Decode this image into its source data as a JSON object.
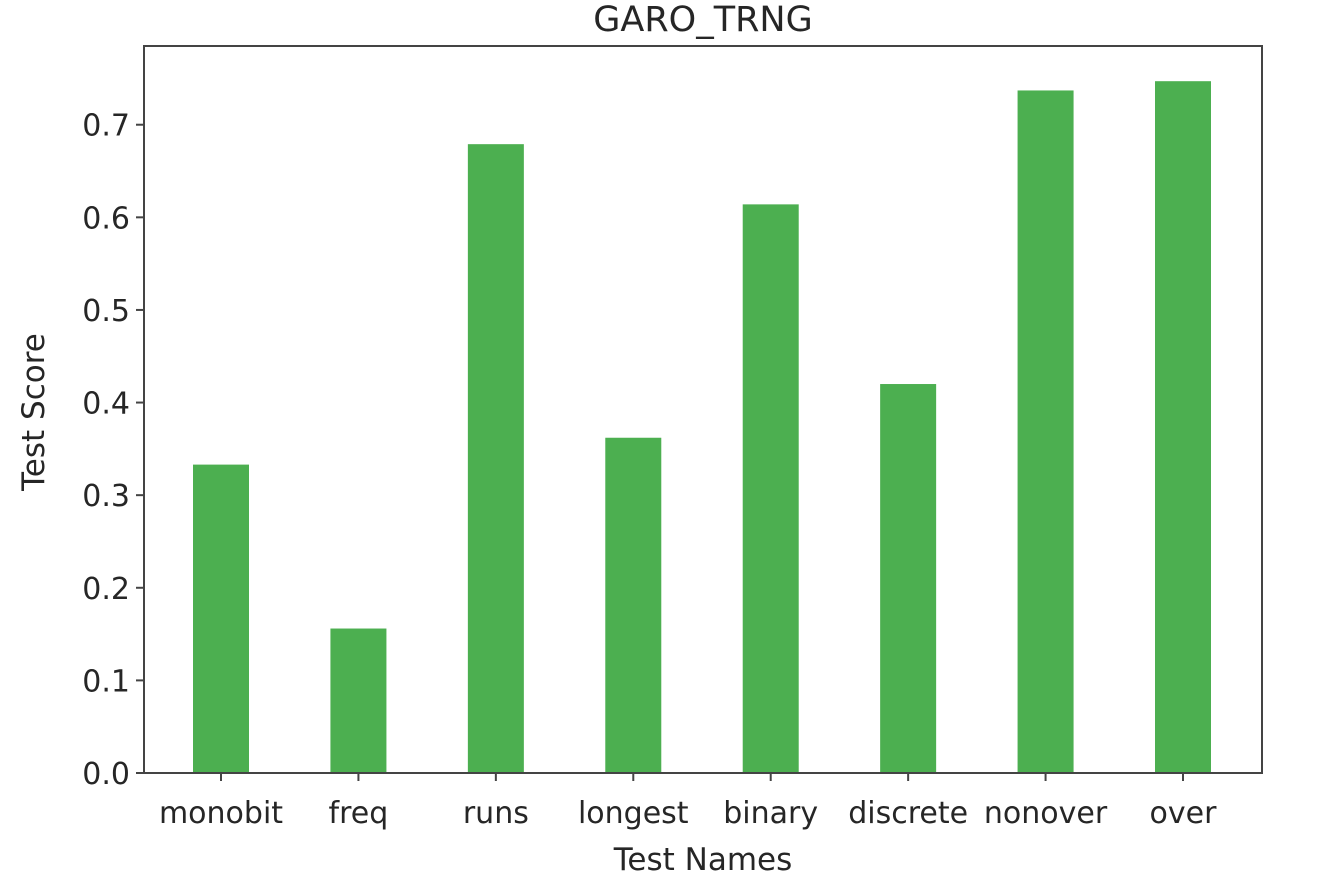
{
  "chart_data": {
    "type": "bar",
    "title": "GARO_TRNG",
    "xlabel": "Test Names",
    "ylabel": "Test Score",
    "categories": [
      "monobit",
      "freq",
      "runs",
      "longest",
      "binary",
      "discrete",
      "nonover",
      "over"
    ],
    "values": [
      0.333,
      0.156,
      0.679,
      0.362,
      0.614,
      0.42,
      0.737,
      0.747
    ],
    "ylim": [
      0,
      0.785
    ],
    "yticks": [
      0.0,
      0.1,
      0.2,
      0.3,
      0.4,
      0.5,
      0.6,
      0.7
    ],
    "ytick_labels": [
      "0.0",
      "0.1",
      "0.2",
      "0.3",
      "0.4",
      "0.5",
      "0.6",
      "0.7"
    ],
    "grid": false,
    "bar_color": "#4caf50",
    "axis_color": "#444444"
  }
}
